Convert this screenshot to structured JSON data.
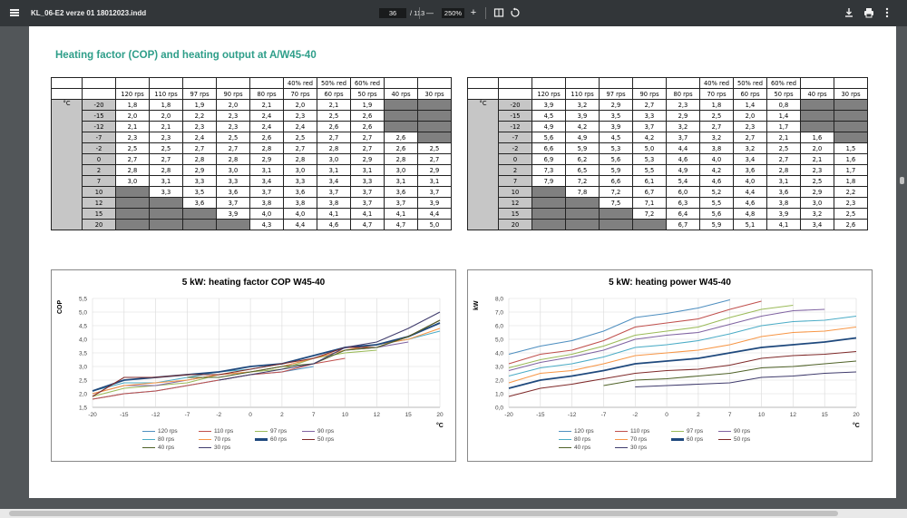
{
  "toolbar": {
    "menu_icon": "menu-icon",
    "doc_title": "KL_06-E2 verze 01 18012023.indd",
    "page_current": "36",
    "page_total": "/ 113",
    "zoom_out": "—",
    "zoom": "250%",
    "zoom_in": "+",
    "icons": [
      "fit-page-icon",
      "rotate-icon",
      "download-icon",
      "print-icon",
      "more-vert-icon"
    ]
  },
  "heading": "Heating factor (COP) and heating output at A/W45-40",
  "cop_table": {
    "super_headers": [
      "40% red",
      "50% red",
      "60% red"
    ],
    "headers": [
      "120 rps",
      "110 rps",
      "97 rps",
      "90 rps",
      "80 rps",
      "70 rps",
      "60 rps",
      "50 rps",
      "40 rps",
      "30 rps"
    ],
    "unit": "°C",
    "rows": [
      {
        "t": "-20",
        "v": [
          "1,8",
          "1,8",
          "1,9",
          "2,0",
          "2,1",
          "2,0",
          "2,1",
          "1,9",
          "",
          ""
        ]
      },
      {
        "t": "-15",
        "v": [
          "2,0",
          "2,0",
          "2,2",
          "2,3",
          "2,4",
          "2,3",
          "2,5",
          "2,6",
          "",
          ""
        ]
      },
      {
        "t": "-12",
        "v": [
          "2,1",
          "2,1",
          "2,3",
          "2,3",
          "2,4",
          "2,4",
          "2,6",
          "2,6",
          "",
          ""
        ]
      },
      {
        "t": "-7",
        "v": [
          "2,3",
          "2,3",
          "2,4",
          "2,5",
          "2,6",
          "2,5",
          "2,7",
          "2,7",
          "2,6",
          ""
        ]
      },
      {
        "t": "-2",
        "v": [
          "2,5",
          "2,5",
          "2,7",
          "2,7",
          "2,8",
          "2,7",
          "2,8",
          "2,7",
          "2,6",
          "2,5"
        ]
      },
      {
        "t": "0",
        "v": [
          "2,7",
          "2,7",
          "2,8",
          "2,8",
          "2,9",
          "2,8",
          "3,0",
          "2,9",
          "2,8",
          "2,7"
        ]
      },
      {
        "t": "2",
        "v": [
          "2,8",
          "2,8",
          "2,9",
          "3,0",
          "3,1",
          "3,0",
          "3,1",
          "3,1",
          "3,0",
          "2,9"
        ]
      },
      {
        "t": "7",
        "v": [
          "3,0",
          "3,1",
          "3,3",
          "3,3",
          "3,4",
          "3,3",
          "3,4",
          "3,3",
          "3,1",
          "3,1"
        ]
      },
      {
        "t": "10",
        "v": [
          "",
          "3,3",
          "3,5",
          "3,6",
          "3,7",
          "3,6",
          "3,7",
          "3,7",
          "3,6",
          "3,7"
        ]
      },
      {
        "t": "12",
        "v": [
          "",
          "",
          "3,6",
          "3,7",
          "3,8",
          "3,8",
          "3,8",
          "3,7",
          "3,7",
          "3,9"
        ]
      },
      {
        "t": "15",
        "v": [
          "",
          "",
          "",
          "3,9",
          "4,0",
          "4,0",
          "4,1",
          "4,1",
          "4,1",
          "4,4"
        ]
      },
      {
        "t": "20",
        "v": [
          "",
          "",
          "",
          "",
          "4,3",
          "4,4",
          "4,6",
          "4,7",
          "4,7",
          "5,0"
        ]
      }
    ]
  },
  "power_table": {
    "super_headers": [
      "40% red",
      "50% red",
      "60% red"
    ],
    "headers": [
      "120 rps",
      "110 rps",
      "97 rps",
      "90 rps",
      "80 rps",
      "70 rps",
      "60 rps",
      "50 rps",
      "40 rps",
      "30 rps"
    ],
    "unit": "°C",
    "rows": [
      {
        "t": "-20",
        "v": [
          "3,9",
          "3,2",
          "2,9",
          "2,7",
          "2,3",
          "1,8",
          "1,4",
          "0,8",
          "",
          ""
        ]
      },
      {
        "t": "-15",
        "v": [
          "4,5",
          "3,9",
          "3,5",
          "3,3",
          "2,9",
          "2,5",
          "2,0",
          "1,4",
          "",
          ""
        ]
      },
      {
        "t": "-12",
        "v": [
          "4,9",
          "4,2",
          "3,9",
          "3,7",
          "3,2",
          "2,7",
          "2,3",
          "1,7",
          "",
          ""
        ]
      },
      {
        "t": "-7",
        "v": [
          "5,6",
          "4,9",
          "4,5",
          "4,2",
          "3,7",
          "3,2",
          "2,7",
          "2,1",
          "1,6",
          ""
        ]
      },
      {
        "t": "-2",
        "v": [
          "6,6",
          "5,9",
          "5,3",
          "5,0",
          "4,4",
          "3,8",
          "3,2",
          "2,5",
          "2,0",
          "1,5"
        ]
      },
      {
        "t": "0",
        "v": [
          "6,9",
          "6,2",
          "5,6",
          "5,3",
          "4,6",
          "4,0",
          "3,4",
          "2,7",
          "2,1",
          "1,6"
        ]
      },
      {
        "t": "2",
        "v": [
          "7,3",
          "6,5",
          "5,9",
          "5,5",
          "4,9",
          "4,2",
          "3,6",
          "2,8",
          "2,3",
          "1,7"
        ]
      },
      {
        "t": "7",
        "v": [
          "7,9",
          "7,2",
          "6,6",
          "6,1",
          "5,4",
          "4,6",
          "4,0",
          "3,1",
          "2,5",
          "1,8"
        ]
      },
      {
        "t": "10",
        "v": [
          "",
          "7,8",
          "7,2",
          "6,7",
          "6,0",
          "5,2",
          "4,4",
          "3,6",
          "2,9",
          "2,2"
        ]
      },
      {
        "t": "12",
        "v": [
          "",
          "",
          "7,5",
          "7,1",
          "6,3",
          "5,5",
          "4,6",
          "3,8",
          "3,0",
          "2,3"
        ]
      },
      {
        "t": "15",
        "v": [
          "",
          "",
          "",
          "7,2",
          "6,4",
          "5,6",
          "4,8",
          "3,9",
          "3,2",
          "2,5"
        ]
      },
      {
        "t": "20",
        "v": [
          "",
          "",
          "",
          "",
          "6,7",
          "5,9",
          "5,1",
          "4,1",
          "3,4",
          "2,6"
        ]
      }
    ]
  },
  "series_colors": [
    "#4f8fc0",
    "#c0504d",
    "#9bbb59",
    "#8064a2",
    "#4bacc6",
    "#f79646",
    "#1f497d",
    "#7f2a2a",
    "#4f6228",
    "#403c6d"
  ],
  "series_widths": [
    "normal",
    "normal",
    "normal",
    "normal",
    "normal",
    "normal",
    "thick",
    "normal",
    "normal",
    "normal"
  ],
  "chart_data": [
    {
      "type": "line",
      "title": "5 kW: heating factor COP W45-40",
      "xlabel": "°C",
      "ylabel": "COP",
      "x": [
        -20,
        -15,
        -12,
        -7,
        -2,
        0,
        2,
        7,
        10,
        12,
        15,
        20
      ],
      "x_ticks": [
        "-20",
        "-15",
        "-12",
        "-7",
        "-2",
        "0",
        "2",
        "7",
        "10",
        "12",
        "15",
        "20"
      ],
      "y_ticks": [
        "1,5",
        "2,0",
        "2,5",
        "3,0",
        "3,5",
        "4,0",
        "4,5",
        "5,0",
        "5,5"
      ],
      "ylim": [
        1.5,
        5.5
      ],
      "grid": true,
      "legend_position": "bottom",
      "series": [
        {
          "name": "120 rps",
          "values": [
            1.8,
            2.0,
            2.1,
            2.3,
            2.5,
            2.7,
            2.8,
            3.0,
            null,
            null,
            null,
            null
          ]
        },
        {
          "name": "110 rps",
          "values": [
            1.8,
            2.0,
            2.1,
            2.3,
            2.5,
            2.7,
            2.8,
            3.1,
            3.3,
            null,
            null,
            null
          ]
        },
        {
          "name": "97 rps",
          "values": [
            1.9,
            2.2,
            2.3,
            2.4,
            2.7,
            2.8,
            2.9,
            3.3,
            3.5,
            3.6,
            null,
            null
          ]
        },
        {
          "name": "90 rps",
          "values": [
            2.0,
            2.3,
            2.3,
            2.5,
            2.7,
            2.8,
            3.0,
            3.3,
            3.6,
            3.7,
            3.9,
            null
          ]
        },
        {
          "name": "80 rps",
          "values": [
            2.1,
            2.4,
            2.4,
            2.6,
            2.8,
            2.9,
            3.1,
            3.4,
            3.7,
            3.8,
            4.0,
            4.3
          ]
        },
        {
          "name": "70 rps",
          "values": [
            2.0,
            2.3,
            2.4,
            2.5,
            2.7,
            2.8,
            3.0,
            3.3,
            3.6,
            3.8,
            4.0,
            4.4
          ]
        },
        {
          "name": "60 rps",
          "values": [
            2.1,
            2.5,
            2.6,
            2.7,
            2.8,
            3.0,
            3.1,
            3.4,
            3.7,
            3.8,
            4.1,
            4.6
          ]
        },
        {
          "name": "50 rps",
          "values": [
            1.9,
            2.6,
            2.6,
            2.7,
            2.7,
            2.9,
            3.1,
            3.3,
            3.7,
            3.7,
            4.1,
            4.7
          ]
        },
        {
          "name": "40 rps",
          "values": [
            null,
            null,
            null,
            2.6,
            2.6,
            2.8,
            3.0,
            3.1,
            3.6,
            3.7,
            4.1,
            4.7
          ]
        },
        {
          "name": "30 rps",
          "values": [
            null,
            null,
            null,
            null,
            2.5,
            2.7,
            2.9,
            3.1,
            3.7,
            3.9,
            4.4,
            5.0
          ]
        }
      ]
    },
    {
      "type": "line",
      "title": "5 kW: heating power W45-40",
      "xlabel": "°C",
      "ylabel": "kW",
      "x": [
        -20,
        -15,
        -12,
        -7,
        -2,
        0,
        2,
        7,
        10,
        12,
        15,
        20
      ],
      "x_ticks": [
        "-20",
        "-15",
        "-12",
        "-7",
        "-2",
        "0",
        "2",
        "7",
        "10",
        "12",
        "15",
        "20"
      ],
      "y_ticks": [
        "0,0",
        "1,0",
        "2,0",
        "3,0",
        "4,0",
        "5,0",
        "6,0",
        "7,0",
        "8,0"
      ],
      "ylim": [
        0,
        8
      ],
      "grid": true,
      "legend_position": "bottom",
      "series": [
        {
          "name": "120 rps",
          "values": [
            3.9,
            4.5,
            4.9,
            5.6,
            6.6,
            6.9,
            7.3,
            7.9,
            null,
            null,
            null,
            null
          ]
        },
        {
          "name": "110 rps",
          "values": [
            3.2,
            3.9,
            4.2,
            4.9,
            5.9,
            6.2,
            6.5,
            7.2,
            7.8,
            null,
            null,
            null
          ]
        },
        {
          "name": "97 rps",
          "values": [
            2.9,
            3.5,
            3.9,
            4.5,
            5.3,
            5.6,
            5.9,
            6.6,
            7.2,
            7.5,
            null,
            null
          ]
        },
        {
          "name": "90 rps",
          "values": [
            2.7,
            3.3,
            3.7,
            4.2,
            5.0,
            5.3,
            5.5,
            6.1,
            6.7,
            7.1,
            7.2,
            null
          ]
        },
        {
          "name": "80 rps",
          "values": [
            2.3,
            2.9,
            3.2,
            3.7,
            4.4,
            4.6,
            4.9,
            5.4,
            6.0,
            6.3,
            6.4,
            6.7
          ]
        },
        {
          "name": "70 rps",
          "values": [
            1.8,
            2.5,
            2.7,
            3.2,
            3.8,
            4.0,
            4.2,
            4.6,
            5.2,
            5.5,
            5.6,
            5.9
          ]
        },
        {
          "name": "60 rps",
          "values": [
            1.4,
            2.0,
            2.3,
            2.7,
            3.2,
            3.4,
            3.6,
            4.0,
            4.4,
            4.6,
            4.8,
            5.1
          ]
        },
        {
          "name": "50 rps",
          "values": [
            0.8,
            1.4,
            1.7,
            2.1,
            2.5,
            2.7,
            2.8,
            3.1,
            3.6,
            3.8,
            3.9,
            4.1
          ]
        },
        {
          "name": "40 rps",
          "values": [
            null,
            null,
            null,
            1.6,
            2.0,
            2.1,
            2.3,
            2.5,
            2.9,
            3.0,
            3.2,
            3.4
          ]
        },
        {
          "name": "30 rps",
          "values": [
            null,
            null,
            null,
            null,
            1.5,
            1.6,
            1.7,
            1.8,
            2.2,
            2.3,
            2.5,
            2.6
          ]
        }
      ]
    }
  ]
}
